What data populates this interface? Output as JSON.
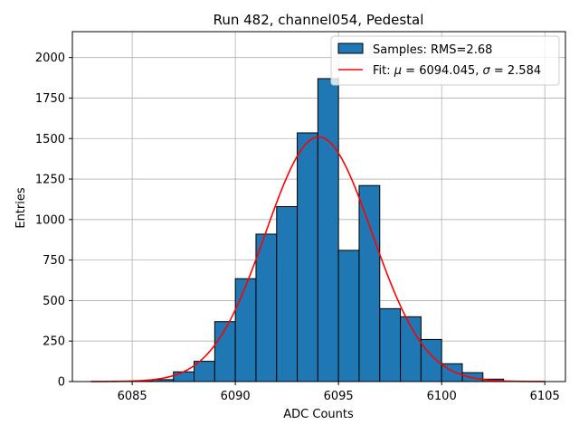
{
  "chart_data": {
    "type": "bar",
    "title": "Run 482, channel054, Pedestal",
    "xlabel": "ADC Counts",
    "ylabel": "Entries",
    "xlim": [
      6082.1,
      6106.0
    ],
    "ylim": [
      0,
      2160
    ],
    "grid": true,
    "legend_position": "top-right",
    "xticks": [
      6085,
      6090,
      6095,
      6100,
      6105
    ],
    "yticks": [
      0,
      250,
      500,
      750,
      1000,
      1250,
      1500,
      1750,
      2000
    ],
    "bins": [
      {
        "left": 6085.0,
        "right": 6086.0,
        "value": 3
      },
      {
        "left": 6086.0,
        "right": 6087.0,
        "value": 12
      },
      {
        "left": 6087.0,
        "right": 6088.0,
        "value": 60
      },
      {
        "left": 6088.0,
        "right": 6089.0,
        "value": 125
      },
      {
        "left": 6089.0,
        "right": 6090.0,
        "value": 370
      },
      {
        "left": 6090.0,
        "right": 6091.0,
        "value": 635
      },
      {
        "left": 6091.0,
        "right": 6092.0,
        "value": 910
      },
      {
        "left": 6092.0,
        "right": 6093.0,
        "value": 1080
      },
      {
        "left": 6093.0,
        "right": 6094.0,
        "value": 1535
      },
      {
        "left": 6094.0,
        "right": 6095.0,
        "value": 1870
      },
      {
        "left": 6095.0,
        "right": 6096.0,
        "value": 810
      },
      {
        "left": 6096.0,
        "right": 6097.0,
        "value": 1210
      },
      {
        "left": 6097.0,
        "right": 6098.0,
        "value": 450
      },
      {
        "left": 6098.0,
        "right": 6099.0,
        "value": 400
      },
      {
        "left": 6099.0,
        "right": 6100.0,
        "value": 260
      },
      {
        "left": 6100.0,
        "right": 6101.0,
        "value": 110
      },
      {
        "left": 6101.0,
        "right": 6102.0,
        "value": 55
      },
      {
        "left": 6102.0,
        "right": 6103.0,
        "value": 15
      }
    ],
    "fit": {
      "mu": 6094.045,
      "sigma": 2.584,
      "amplitude": 1510,
      "x_range": [
        6083,
        6105
      ]
    },
    "series": [
      {
        "name": "Samples: RMS=2.68",
        "type": "histogram",
        "color": "#1f77b4",
        "edgecolor": "#000000"
      },
      {
        "name": "Fit: μ = 6094.045, σ = 2.584",
        "name_prefix": "Fit: ",
        "mu_symbol": "μ",
        "mu_text": " = 6094.045, ",
        "sigma_symbol": "σ",
        "sigma_text": " = 2.584",
        "type": "line",
        "color": "#ff0000"
      }
    ],
    "colors": {
      "bar": "#1f77b4",
      "edge": "#000000",
      "fit": "#ff0000",
      "grid": "#b0b0b0"
    }
  }
}
